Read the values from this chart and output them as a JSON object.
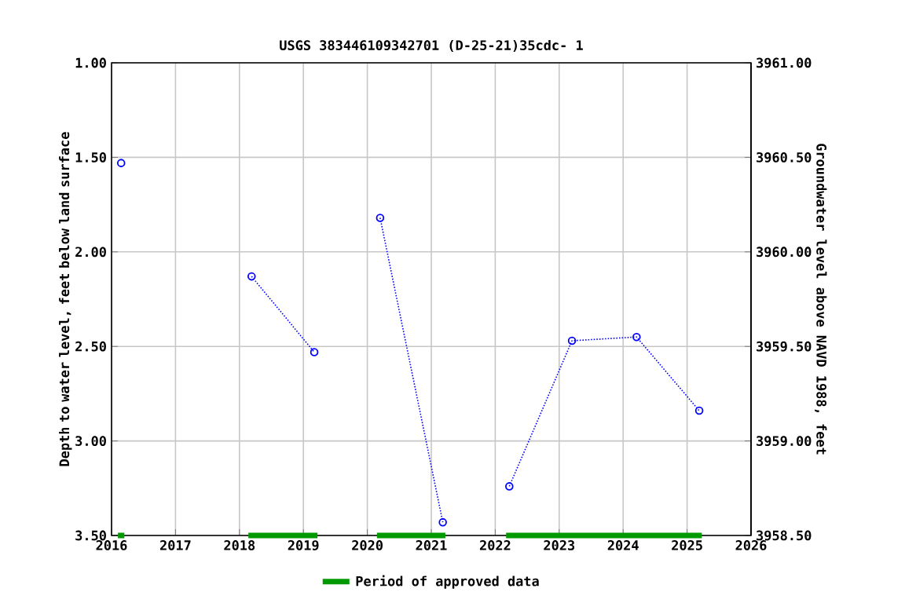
{
  "chart_data": {
    "type": "line",
    "title": "USGS 383446109342701  (D-25-21)35cdc- 1",
    "ylabel": "Depth to water level, feet below land surface",
    "y2label": "Groundwater level above NAVD 1988, feet",
    "series": [
      {
        "color": "#0000ff",
        "x": [
          2016.15
        ],
        "values": [
          1.53
        ]
      },
      {
        "color": "#0000ff",
        "x": [
          2018.19,
          2019.17
        ],
        "values": [
          2.13,
          2.53
        ]
      },
      {
        "color": "#0000ff",
        "x": [
          2020.2,
          2021.18
        ],
        "values": [
          1.82,
          3.43
        ]
      },
      {
        "color": "#0000ff",
        "x": [
          2022.22,
          2023.2,
          2024.21,
          2025.19
        ],
        "values": [
          3.24,
          2.47,
          2.45,
          2.84
        ]
      },
      {
        "name": "Period of approved data",
        "color": "#009900",
        "x": [
          2016.1,
          2016.2
        ],
        "values": [
          3.5,
          3.5
        ],
        "marker": "none",
        "line_style": "solid"
      },
      {
        "color": "#009900",
        "x": [
          2018.14,
          2019.22
        ],
        "values": [
          3.5,
          3.5
        ],
        "marker": "none",
        "line_style": "solid"
      },
      {
        "color": "#009900",
        "x": [
          2020.15,
          2021.22
        ],
        "values": [
          3.5,
          3.5
        ],
        "marker": "none",
        "line_style": "solid"
      },
      {
        "color": "#009900",
        "x": [
          2022.17,
          2025.23
        ],
        "values": [
          3.5,
          3.5
        ],
        "marker": "none",
        "line_style": "solid"
      }
    ],
    "xlim": [
      2016,
      2026
    ],
    "xticks": [
      2016,
      2017,
      2018,
      2019,
      2020,
      2021,
      2022,
      2023,
      2024,
      2025,
      2026
    ],
    "ylim": [
      3.5,
      1.0
    ],
    "yticks": [
      {
        "value": 1.0,
        "label": "1.00"
      },
      {
        "value": 1.5,
        "label": "1.50"
      },
      {
        "value": 2.0,
        "label": "2.00"
      },
      {
        "value": 2.5,
        "label": "2.50"
      },
      {
        "value": 3.0,
        "label": "3.00"
      },
      {
        "value": 3.5,
        "label": "3.50"
      }
    ],
    "y2lim": [
      3958.5,
      3961.0
    ],
    "y2ticks": [
      {
        "value": 3958.5,
        "label": "3958.50"
      },
      {
        "value": 3959.0,
        "label": "3959.00"
      },
      {
        "value": 3959.5,
        "label": "3959.50"
      },
      {
        "value": 3960.0,
        "label": "3960.00"
      },
      {
        "value": 3960.5,
        "label": "3960.50"
      },
      {
        "value": 3961.0,
        "label": "3961.00"
      }
    ],
    "grid": true,
    "legend": "bottom",
    "marker": "circle",
    "line_style": "dotted"
  }
}
